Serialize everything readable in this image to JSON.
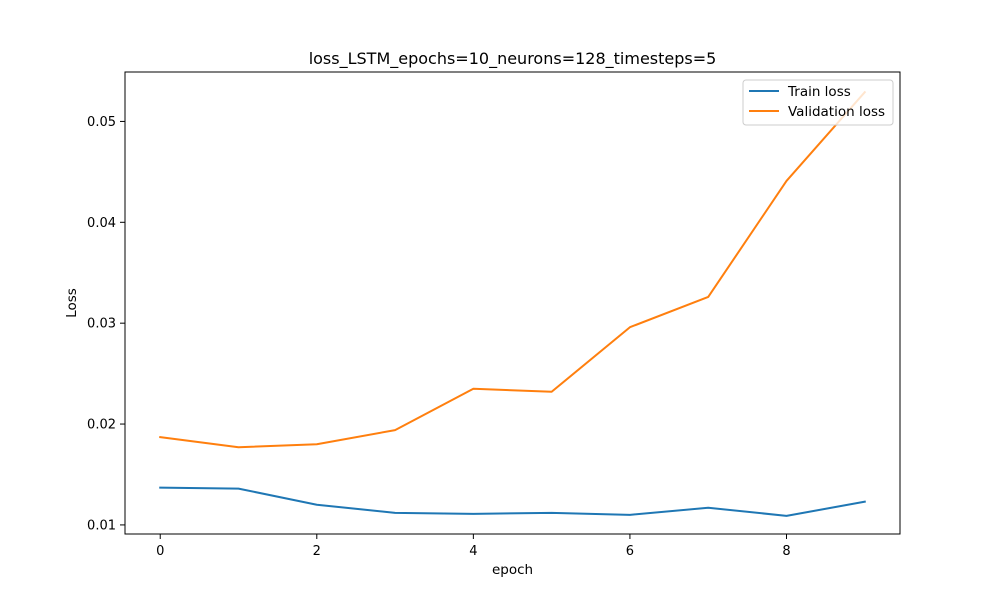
{
  "chart_data": {
    "type": "line",
    "title": "loss_LSTM_epochs=10_neurons=128_timesteps=5",
    "xlabel": "epoch",
    "ylabel": "Loss",
    "x": [
      0,
      1,
      2,
      3,
      4,
      5,
      6,
      7,
      8,
      9
    ],
    "xlim": [
      -0.45,
      9.45
    ],
    "ylim": [
      0.0091,
      0.0549
    ],
    "xticks": [
      0,
      2,
      4,
      6,
      8
    ],
    "yticks": [
      0.01,
      0.02,
      0.03,
      0.04,
      0.05
    ],
    "xtick_labels": [
      "0",
      "2",
      "4",
      "6",
      "8"
    ],
    "ytick_labels": [
      "0.01",
      "0.02",
      "0.03",
      "0.04",
      "0.05"
    ],
    "grid": false,
    "legend_position": "upper right",
    "series": [
      {
        "name": "Train loss",
        "color": "#1f77b4",
        "values": [
          0.0137,
          0.0136,
          0.012,
          0.0112,
          0.0111,
          0.0112,
          0.011,
          0.0117,
          0.0109,
          0.0123
        ]
      },
      {
        "name": "Validation loss",
        "color": "#ff7f0e",
        "values": [
          0.0187,
          0.0177,
          0.018,
          0.0194,
          0.0235,
          0.0232,
          0.0296,
          0.0326,
          0.0441,
          0.0529
        ]
      }
    ]
  }
}
